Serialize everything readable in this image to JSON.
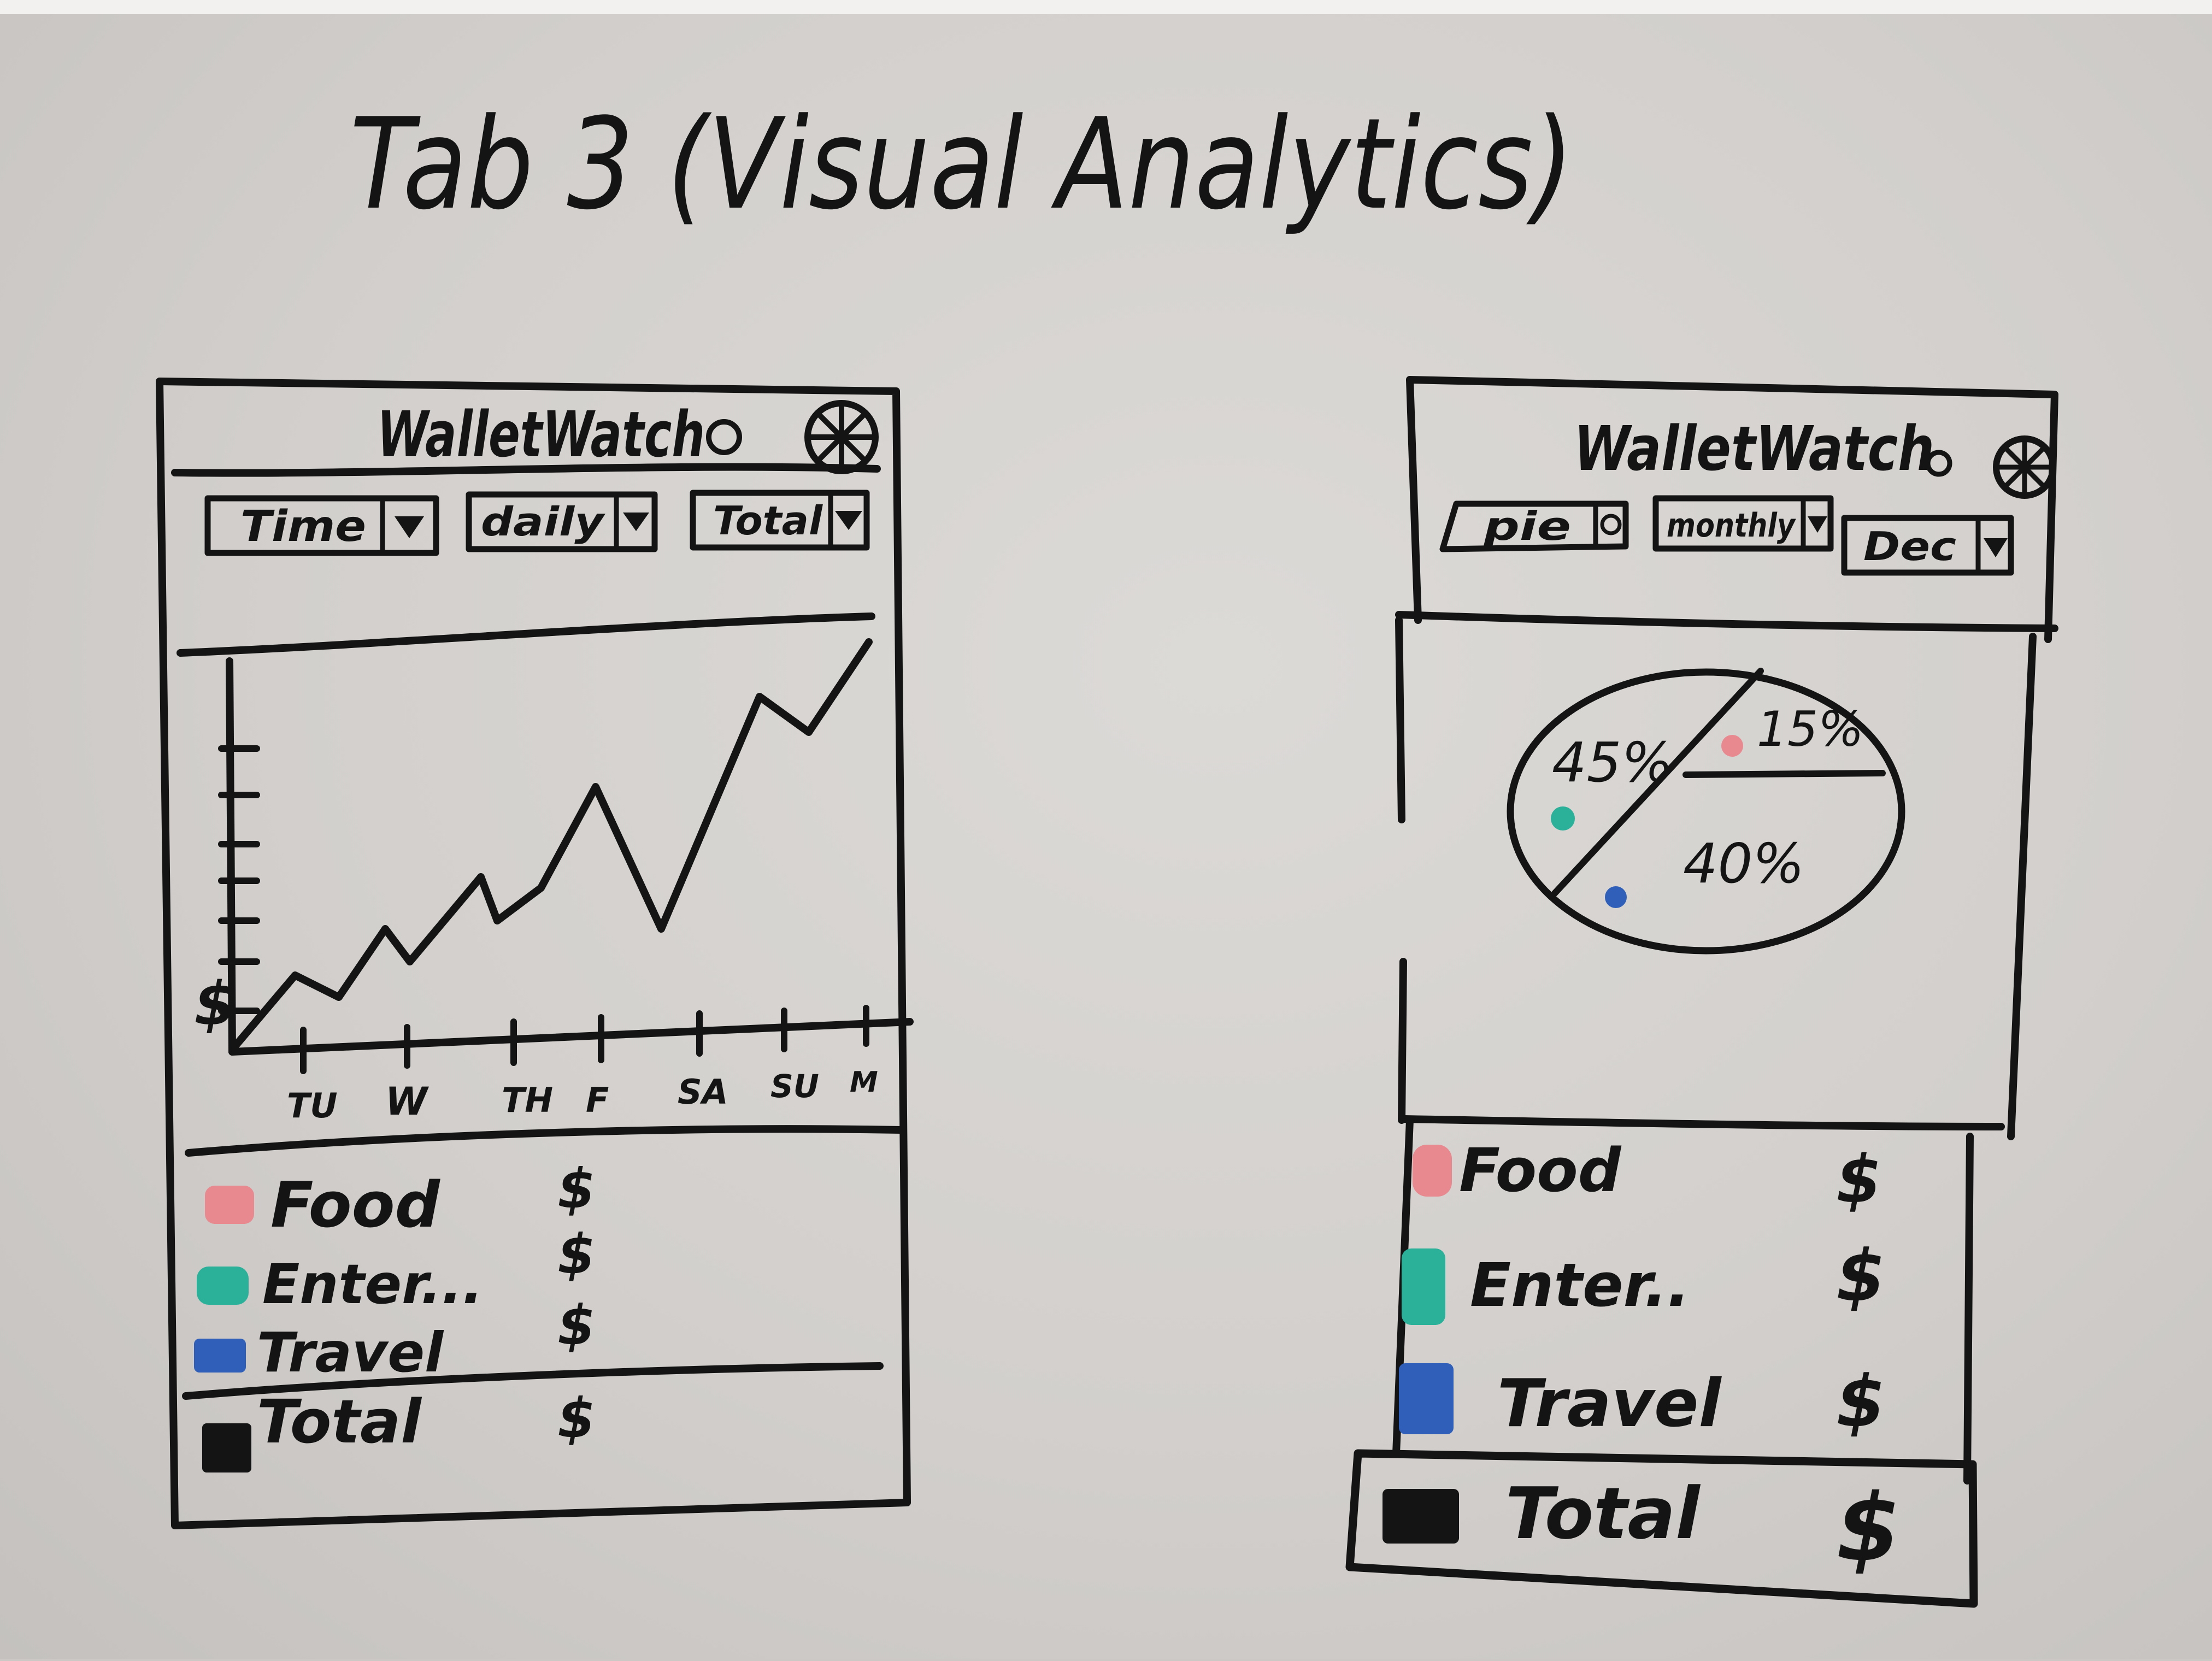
{
  "board_title": "Tab 3 (Visual Analytics)",
  "left_mockup": {
    "app_title": "WalletWatch",
    "dropdowns": [
      {
        "label": "Time"
      },
      {
        "label": "daily"
      },
      {
        "label": "Total"
      }
    ],
    "chart_y_label": "$",
    "chart_x_ticks": [
      "TU",
      "W",
      "TH",
      "F",
      "SA",
      "SU",
      "M"
    ],
    "legend": [
      {
        "label": "Food",
        "value": "$",
        "color": "#e8888f"
      },
      {
        "label": "Enter...",
        "value": "$",
        "color": "#2bb09a"
      },
      {
        "label": "Travel",
        "value": "$",
        "color": "#2f5fb8"
      }
    ],
    "total": {
      "label": "Total",
      "value": "$",
      "color": "#141414"
    }
  },
  "right_mockup": {
    "app_title": "WalletWatch",
    "dropdowns": [
      {
        "label": "pie"
      },
      {
        "label": "monthly"
      },
      {
        "label": "Dec"
      }
    ],
    "pie_labels": [
      "45%",
      "15%",
      "40%"
    ],
    "legend": [
      {
        "label": "Food",
        "value": "$",
        "color": "#e8888f"
      },
      {
        "label": "Enter..",
        "value": "$",
        "color": "#2bb09a"
      },
      {
        "label": "Travel",
        "value": "$",
        "color": "#2f5fb8"
      }
    ],
    "total": {
      "label": "Total",
      "value": "$",
      "color": "#141414"
    }
  }
}
